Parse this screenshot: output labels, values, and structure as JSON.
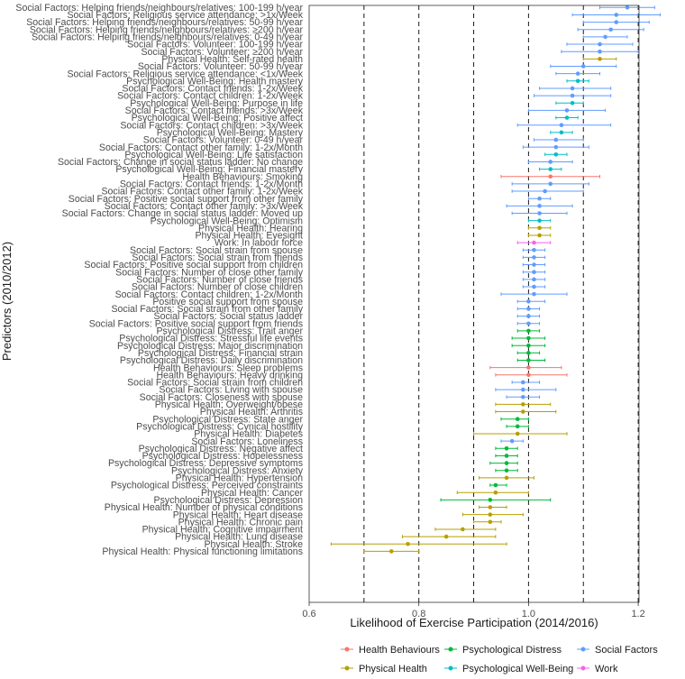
{
  "chart_data": {
    "type": "forest",
    "xlabel": "Likelihood of Exercise Participation (2014/2016)",
    "ylabel": "Predictors (2010/2012)",
    "xlim": [
      0.6,
      1.25
    ],
    "xticks": [
      0.6,
      0.8,
      1.0,
      1.2
    ],
    "reference_lines": [
      0.7,
      0.8,
      0.9,
      1.0,
      1.1,
      1.2
    ],
    "colors": {
      "Health Behaviours": "#f8766d",
      "Physical Health": "#b79f00",
      "Psychological Distress": "#00ba38",
      "Psychological Well-Being": "#00bfc4",
      "Social Factors": "#619cff",
      "Work": "#f564e3"
    },
    "legend": [
      "Health Behaviours",
      "Physical Health",
      "Psychological Distress",
      "Psychological Well-Being",
      "Social Factors",
      "Work"
    ],
    "rows": [
      {
        "label": "Social Factors: Helping friends/neighbours/relatives: 100-199 h/year",
        "group": "Social Factors",
        "est": 1.18,
        "lo": 1.13,
        "hi": 1.23
      },
      {
        "label": "Social Factors: Religious service attendance: >1x/Week",
        "group": "Social Factors",
        "est": 1.16,
        "lo": 1.08,
        "hi": 1.24
      },
      {
        "label": "Social Factors: Helping friends/neighbours/relatives: 50-99 h/year",
        "group": "Social Factors",
        "est": 1.16,
        "lo": 1.1,
        "hi": 1.22
      },
      {
        "label": "Social Factors: Helping friends/neighbours/relatives: ≥200 h/year",
        "group": "Social Factors",
        "est": 1.15,
        "lo": 1.09,
        "hi": 1.21
      },
      {
        "label": "Social Factors: Helping friends/neighbours/relatives: 0-49 h/year",
        "group": "Social Factors",
        "est": 1.14,
        "lo": 1.1,
        "hi": 1.18
      },
      {
        "label": "Social Factors: Volunteer: 100-199 h/year",
        "group": "Social Factors",
        "est": 1.13,
        "lo": 1.07,
        "hi": 1.19
      },
      {
        "label": "Social Factors: Volunteer: ≥200 h/year",
        "group": "Social Factors",
        "est": 1.13,
        "lo": 1.06,
        "hi": 1.2
      },
      {
        "label": "Physical Health: Self-rated health",
        "group": "Physical Health",
        "est": 1.13,
        "lo": 1.1,
        "hi": 1.16
      },
      {
        "label": "Social Factors: Volunteer: 50-99 h/year",
        "group": "Social Factors",
        "est": 1.1,
        "lo": 1.04,
        "hi": 1.16
      },
      {
        "label": "Social Factors: Religious service attendance: <1x/Week",
        "group": "Social Factors",
        "est": 1.09,
        "lo": 1.05,
        "hi": 1.13
      },
      {
        "label": "Psychological Well-Being: Health mastery",
        "group": "Psychological Well-Being",
        "est": 1.09,
        "lo": 1.07,
        "hi": 1.11
      },
      {
        "label": "Social Factors: Contact friends: 1-2x/Week",
        "group": "Social Factors",
        "est": 1.08,
        "lo": 1.02,
        "hi": 1.15
      },
      {
        "label": "Social Factors: Contact children: 1-2x/Week",
        "group": "Social Factors",
        "est": 1.08,
        "lo": 1.01,
        "hi": 1.15
      },
      {
        "label": "Psychological Well-Being: Purpose in life",
        "group": "Psychological Well-Being",
        "est": 1.08,
        "lo": 1.05,
        "hi": 1.1
      },
      {
        "label": "Social Factors: Contact friends: >3x/Week",
        "group": "Social Factors",
        "est": 1.07,
        "lo": 1.0,
        "hi": 1.14
      },
      {
        "label": "Psychological Well-Being: Positive affect",
        "group": "Psychological Well-Being",
        "est": 1.07,
        "lo": 1.05,
        "hi": 1.09
      },
      {
        "label": "Social Factors: Contact children: >3x/Week",
        "group": "Social Factors",
        "est": 1.06,
        "lo": 0.98,
        "hi": 1.15
      },
      {
        "label": "Psychological Well-Being: Mastery",
        "group": "Psychological Well-Being",
        "est": 1.06,
        "lo": 1.04,
        "hi": 1.08
      },
      {
        "label": "Social Factors: Volunteer: 0-49 h/year",
        "group": "Social Factors",
        "est": 1.05,
        "lo": 1.01,
        "hi": 1.1
      },
      {
        "label": "Social Factors: Contact other family: 1-2x/Month",
        "group": "Social Factors",
        "est": 1.05,
        "lo": 0.99,
        "hi": 1.11
      },
      {
        "label": "Psychological Well-Being: Life satisfaction",
        "group": "Psychological Well-Being",
        "est": 1.05,
        "lo": 1.03,
        "hi": 1.07
      },
      {
        "label": "Social Factors: Change in social status ladder: No change",
        "group": "Social Factors",
        "est": 1.04,
        "lo": 1.0,
        "hi": 1.08
      },
      {
        "label": "Psychological Well-Being: Financial mastery",
        "group": "Psychological Well-Being",
        "est": 1.04,
        "lo": 1.02,
        "hi": 1.06
      },
      {
        "label": "Health Behaviours: Smoking",
        "group": "Health Behaviours",
        "est": 1.04,
        "lo": 0.95,
        "hi": 1.13
      },
      {
        "label": "Social Factors: Contact friends: 1-2x/Month",
        "group": "Social Factors",
        "est": 1.04,
        "lo": 0.97,
        "hi": 1.11
      },
      {
        "label": "Social Factors: Contact other family: 1-2x/Week",
        "group": "Social Factors",
        "est": 1.03,
        "lo": 0.97,
        "hi": 1.1
      },
      {
        "label": "Social Factors: Positive social support from other family",
        "group": "Social Factors",
        "est": 1.02,
        "lo": 1.0,
        "hi": 1.04
      },
      {
        "label": "Social Factors: Contact other family: >3x/Week",
        "group": "Social Factors",
        "est": 1.02,
        "lo": 0.96,
        "hi": 1.08
      },
      {
        "label": "Social Factors: Change in social status ladder: Moved up",
        "group": "Social Factors",
        "est": 1.02,
        "lo": 0.97,
        "hi": 1.07
      },
      {
        "label": "Psychological Well-Being: Optimism",
        "group": "Psychological Well-Being",
        "est": 1.02,
        "lo": 1.0,
        "hi": 1.04
      },
      {
        "label": "Physical Health: Hearing",
        "group": "Physical Health",
        "est": 1.02,
        "lo": 1.0,
        "hi": 1.04
      },
      {
        "label": "Physical Health: Eyesight",
        "group": "Physical Health",
        "est": 1.02,
        "lo": 1.0,
        "hi": 1.04
      },
      {
        "label": "Work: In labour force",
        "group": "Work",
        "est": 1.01,
        "lo": 0.98,
        "hi": 1.04
      },
      {
        "label": "Social Factors: Social strain from spouse",
        "group": "Social Factors",
        "est": 1.01,
        "lo": 0.99,
        "hi": 1.03
      },
      {
        "label": "Social Factors: Social strain from friends",
        "group": "Social Factors",
        "est": 1.01,
        "lo": 0.99,
        "hi": 1.03
      },
      {
        "label": "Social Factors: Positive social support from children",
        "group": "Social Factors",
        "est": 1.01,
        "lo": 0.99,
        "hi": 1.03
      },
      {
        "label": "Social Factors: Number of close other family",
        "group": "Social Factors",
        "est": 1.01,
        "lo": 0.99,
        "hi": 1.03
      },
      {
        "label": "Social Factors: Number of close friends",
        "group": "Social Factors",
        "est": 1.01,
        "lo": 0.99,
        "hi": 1.03
      },
      {
        "label": "Social Factors: Number of close children",
        "group": "Social Factors",
        "est": 1.01,
        "lo": 0.99,
        "hi": 1.03
      },
      {
        "label": "Social Factors: Contact children: 1-2x/Month",
        "group": "Social Factors",
        "est": 1.01,
        "lo": 0.95,
        "hi": 1.07
      },
      {
        "label": "Positive social support from spouse",
        "group": "Social Factors",
        "est": 1.0,
        "lo": 0.98,
        "hi": 1.03
      },
      {
        "label": "Social Factors: Social strain from other family",
        "group": "Social Factors",
        "est": 1.0,
        "lo": 0.98,
        "hi": 1.02
      },
      {
        "label": "Social Factors: Social status ladder",
        "group": "Social Factors",
        "est": 1.0,
        "lo": 0.98,
        "hi": 1.02
      },
      {
        "label": "Social Factors: Positive social support from friends",
        "group": "Social Factors",
        "est": 1.0,
        "lo": 0.98,
        "hi": 1.02
      },
      {
        "label": "Psychological Distress: Trait anger",
        "group": "Psychological Distress",
        "est": 1.0,
        "lo": 0.98,
        "hi": 1.02
      },
      {
        "label": "Psychological Distress: Stressful life events",
        "group": "Psychological Distress",
        "est": 1.0,
        "lo": 0.97,
        "hi": 1.03
      },
      {
        "label": "Psychological Distress: Major discrimination",
        "group": "Psychological Distress",
        "est": 1.0,
        "lo": 0.97,
        "hi": 1.03
      },
      {
        "label": "Psychological Distress: Financial strain",
        "group": "Psychological Distress",
        "est": 1.0,
        "lo": 0.98,
        "hi": 1.02
      },
      {
        "label": "Psychological Distress: Daily discrimination",
        "group": "Psychological Distress",
        "est": 1.0,
        "lo": 0.98,
        "hi": 1.03
      },
      {
        "label": "Health Behaviours: Sleep problems",
        "group": "Health Behaviours",
        "est": 1.0,
        "lo": 0.93,
        "hi": 1.06
      },
      {
        "label": "Health Behaviours: Heavy drinking",
        "group": "Health Behaviours",
        "est": 1.0,
        "lo": 0.94,
        "hi": 1.07
      },
      {
        "label": "Social Factors: Social strain from children",
        "group": "Social Factors",
        "est": 0.99,
        "lo": 0.97,
        "hi": 1.02
      },
      {
        "label": "Social Factors: Living with spouse",
        "group": "Social Factors",
        "est": 0.99,
        "lo": 0.94,
        "hi": 1.05
      },
      {
        "label": "Social Factors: Closeness with spouse",
        "group": "Social Factors",
        "est": 0.99,
        "lo": 0.96,
        "hi": 1.02
      },
      {
        "label": "Physical Health: Overweight/obese",
        "group": "Physical Health",
        "est": 0.99,
        "lo": 0.94,
        "hi": 1.04
      },
      {
        "label": "Physical Health: Arthritis",
        "group": "Physical Health",
        "est": 0.99,
        "lo": 0.94,
        "hi": 1.05
      },
      {
        "label": "Psychological Distress: State anger",
        "group": "Psychological Distress",
        "est": 0.98,
        "lo": 0.95,
        "hi": 1.0
      },
      {
        "label": "Psychological Distress: Cynical hostility",
        "group": "Psychological Distress",
        "est": 0.98,
        "lo": 0.96,
        "hi": 1.0
      },
      {
        "label": "Physical Health: Diabetes",
        "group": "Physical Health",
        "est": 0.98,
        "lo": 0.9,
        "hi": 1.07
      },
      {
        "label": "Social Factors: Loneliness",
        "group": "Social Factors",
        "est": 0.97,
        "lo": 0.95,
        "hi": 0.99
      },
      {
        "label": "Psychological Distress: Negative affect",
        "group": "Psychological Distress",
        "est": 0.96,
        "lo": 0.94,
        "hi": 0.98
      },
      {
        "label": "Psychological Distress: Hopelessness",
        "group": "Psychological Distress",
        "est": 0.96,
        "lo": 0.94,
        "hi": 0.98
      },
      {
        "label": "Psychological Distress: Depressive symptoms",
        "group": "Psychological Distress",
        "est": 0.96,
        "lo": 0.93,
        "hi": 0.98
      },
      {
        "label": "Psychological Distress: Anxiety",
        "group": "Psychological Distress",
        "est": 0.96,
        "lo": 0.94,
        "hi": 0.98
      },
      {
        "label": "Physical Health: Hypertension",
        "group": "Physical Health",
        "est": 0.96,
        "lo": 0.91,
        "hi": 1.01
      },
      {
        "label": "Psychological Distress: Perceived constraints",
        "group": "Psychological Distress",
        "est": 0.94,
        "lo": 0.93,
        "hi": 0.96
      },
      {
        "label": "Physical Health: Cancer",
        "group": "Physical Health",
        "est": 0.94,
        "lo": 0.87,
        "hi": 1.0
      },
      {
        "label": "Psychological Distress: Depression",
        "group": "Psychological Distress",
        "est": 0.93,
        "lo": 0.84,
        "hi": 1.04
      },
      {
        "label": "Physical Health: Number of physical conditions",
        "group": "Physical Health",
        "est": 0.93,
        "lo": 0.91,
        "hi": 0.96
      },
      {
        "label": "Physical Health: Heart disease",
        "group": "Physical Health",
        "est": 0.93,
        "lo": 0.88,
        "hi": 0.99
      },
      {
        "label": "Physical Health: Chronic pain",
        "group": "Physical Health",
        "est": 0.93,
        "lo": 0.9,
        "hi": 0.95
      },
      {
        "label": "Physical Health: Cognitive impairment",
        "group": "Physical Health",
        "est": 0.88,
        "lo": 0.83,
        "hi": 0.94
      },
      {
        "label": "Physical Health: Lung disease",
        "group": "Physical Health",
        "est": 0.85,
        "lo": 0.77,
        "hi": 0.94
      },
      {
        "label": "Physical Health: Stroke",
        "group": "Physical Health",
        "est": 0.78,
        "lo": 0.64,
        "hi": 0.96
      },
      {
        "label": "Physical Health: Physical functioning limitations",
        "group": "Physical Health",
        "est": 0.75,
        "lo": 0.7,
        "hi": 0.8
      }
    ]
  }
}
